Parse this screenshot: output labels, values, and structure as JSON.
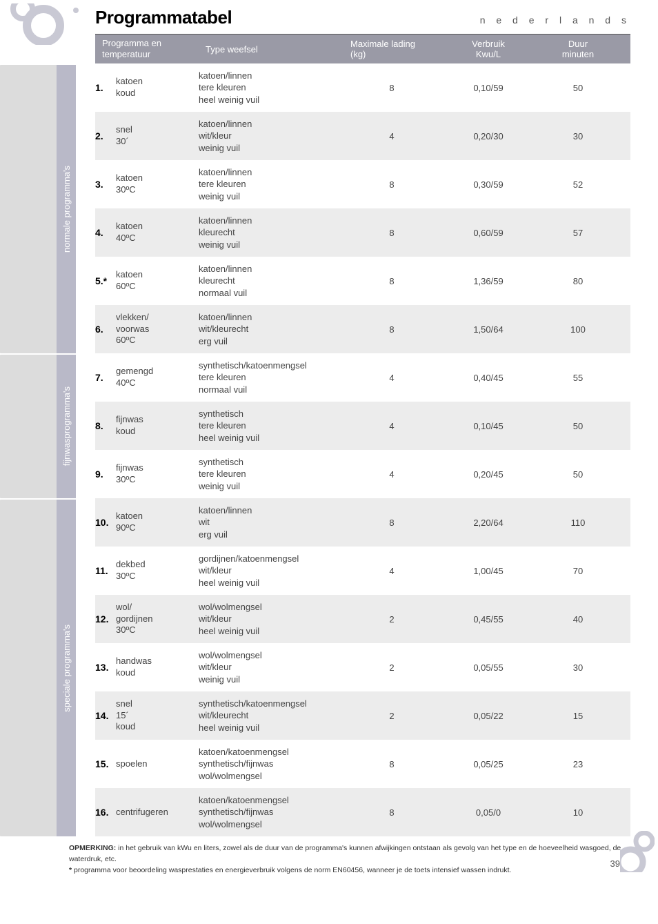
{
  "title": "Programmatabel",
  "language": "n e d e r l a n d s",
  "page_number": "39",
  "columns": {
    "prog": "Programma en temperatuur",
    "type": "Type weefsel",
    "load": "Maximale lading (kg)",
    "cons": "Verbruik Kwu/L",
    "dur": "Duur minuten"
  },
  "sidebars": [
    {
      "label": "normale programma's"
    },
    {
      "label": "fijnwasprogramma's"
    },
    {
      "label": "speciale programma's"
    }
  ],
  "rows": [
    {
      "num": "1.",
      "name": "katoen\nkoud",
      "type": "katoen/linnen\ntere kleuren\nheel weinig vuil",
      "load": "8",
      "cons": "0,10/59",
      "dur": "50"
    },
    {
      "num": "2.",
      "name": "snel\n30´",
      "type": "katoen/linnen\nwit/kleur\nweinig vuil",
      "load": "4",
      "cons": "0,20/30",
      "dur": "30"
    },
    {
      "num": "3.",
      "name": "katoen\n30ºC",
      "type": "katoen/linnen\ntere kleuren\nweinig vuil",
      "load": "8",
      "cons": "0,30/59",
      "dur": "52"
    },
    {
      "num": "4.",
      "name": "katoen\n40ºC",
      "type": "katoen/linnen\nkleurecht\nweinig vuil",
      "load": "8",
      "cons": "0,60/59",
      "dur": "57"
    },
    {
      "num": "5.*",
      "name": "katoen\n60ºC",
      "type": "katoen/linnen\nkleurecht\nnormaal vuil",
      "load": "8",
      "cons": "1,36/59",
      "dur": "80"
    },
    {
      "num": "6.",
      "name": "vlekken/\nvoorwas\n60ºC",
      "type": "katoen/linnen\nwit/kleurecht\nerg vuil",
      "load": "8",
      "cons": "1,50/64",
      "dur": "100"
    },
    {
      "num": "7.",
      "name": "gemengd\n40ºC",
      "type": "synthetisch/katoenmengsel\ntere kleuren\nnormaal vuil",
      "load": "4",
      "cons": "0,40/45",
      "dur": "55"
    },
    {
      "num": "8.",
      "name": "fijnwas\nkoud",
      "type": "synthetisch\ntere kleuren\nheel weinig vuil",
      "load": "4",
      "cons": "0,10/45",
      "dur": "50"
    },
    {
      "num": "9.",
      "name": "fijnwas\n30ºC",
      "type": "synthetisch\ntere kleuren\nweinig vuil",
      "load": "4",
      "cons": "0,20/45",
      "dur": "50"
    },
    {
      "num": "10.",
      "name": "katoen\n90ºC",
      "type": "katoen/linnen\nwit\nerg vuil",
      "load": "8",
      "cons": "2,20/64",
      "dur": "110"
    },
    {
      "num": "11.",
      "name": "dekbed\n30ºC",
      "type": "gordijnen/katoenmengsel\nwit/kleur\nheel weinig vuil",
      "load": "4",
      "cons": "1,00/45",
      "dur": "70"
    },
    {
      "num": "12.",
      "name": "wol/\ngordijnen\n30ºC",
      "type": "wol/wolmengsel\nwit/kleur\nheel weinig vuil",
      "load": "2",
      "cons": "0,45/55",
      "dur": "40"
    },
    {
      "num": "13.",
      "name": "handwas\nkoud",
      "type": "wol/wolmengsel\nwit/kleur\nweinig vuil",
      "load": "2",
      "cons": "0,05/55",
      "dur": "30"
    },
    {
      "num": "14.",
      "name": "snel\n15´\nkoud",
      "type": "synthetisch/katoenmengsel\nwit/kleurecht\nheel weinig vuil",
      "load": "2",
      "cons": "0,05/22",
      "dur": "15"
    },
    {
      "num": "15.",
      "name": "spoelen",
      "type": "katoen/katoenmengsel\nsynthetisch/fijnwas\nwol/wolmengsel",
      "load": "8",
      "cons": "0,05/25",
      "dur": "23"
    },
    {
      "num": "16.",
      "name": "centrifugeren",
      "type": "katoen/katoenmengsel\nsynthetisch/fijnwas\nwol/wolmengsel",
      "load": "8",
      "cons": "0,05/0",
      "dur": "10"
    }
  ],
  "footnote1_label": "OPMERKING:",
  "footnote1": " in het gebruik van kWu en liters, zowel als de duur van de programma's kunnen afwijkingen ontstaan als gevolg van het type en de hoeveelheid wasgoed, de waterdruk, etc.",
  "footnote2_label": "*",
  "footnote2": " programma voor beoordeling wasprestaties en energieverbruik volgens de norm EN60456, wanneer je de toets intensief wassen indrukt.",
  "colors": {
    "header_bg": "#9a9aa6",
    "row_alt": "#ececec",
    "sidebar_bg": "#dcdcdc",
    "sidebar_accent": "#b9b9c8"
  }
}
